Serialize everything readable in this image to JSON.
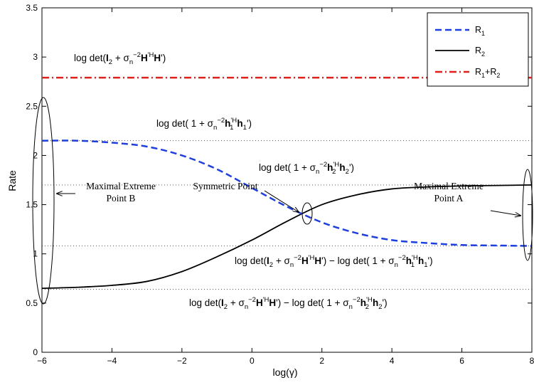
{
  "chart_data": {
    "type": "line",
    "xlabel": "log(γ)",
    "ylabel": "Rate",
    "xlim": [
      -6,
      8
    ],
    "ylim": [
      0,
      3.5
    ],
    "x_ticks": [
      "−6",
      "−4",
      "−2",
      "0",
      "2",
      "4",
      "6",
      "8"
    ],
    "y_ticks": [
      "0",
      "0.5",
      "1",
      "1.5",
      "2",
      "2.5",
      "3",
      "3.5"
    ],
    "grid": false,
    "legend": {
      "placement": "top-right",
      "entries": [
        "R1",
        "R2",
        "R1+R2"
      ]
    },
    "series": [
      {
        "name": "R1",
        "color": "#1f3fdd",
        "style": "dashed",
        "x": [
          -6,
          -5,
          -4,
          -3,
          -2,
          -1,
          0,
          1,
          2,
          3,
          4,
          5,
          6,
          7,
          8
        ],
        "y": [
          2.15,
          2.15,
          2.13,
          2.09,
          2.0,
          1.86,
          1.67,
          1.48,
          1.32,
          1.21,
          1.14,
          1.11,
          1.09,
          1.085,
          1.08
        ]
      },
      {
        "name": "R2",
        "color": "#000000",
        "style": "solid",
        "x": [
          -6,
          -5,
          -4,
          -3,
          -2,
          -1,
          0,
          1,
          2,
          3,
          4,
          5,
          6,
          7,
          8
        ],
        "y": [
          0.65,
          0.66,
          0.68,
          0.72,
          0.82,
          0.97,
          1.14,
          1.33,
          1.5,
          1.6,
          1.66,
          1.68,
          1.69,
          1.695,
          1.7
        ]
      },
      {
        "name": "R1+R2",
        "color": "#e0201c",
        "style": "dashdot",
        "x": [
          -6,
          8
        ],
        "y": [
          2.79,
          2.79
        ]
      }
    ],
    "reference_lines": [
      2.15,
      1.7,
      1.08,
      0.64
    ],
    "annotations": {
      "sum_bound": "log det(I2 + σn−2H'HH')",
      "r1_max": "log det( 1 + σn−2h1'Hh1')",
      "r2_max": "log det( 1 + σn−2h2'Hh2')",
      "r2_min": "log det(I2 + σn−2H'HH') − log det( 1 + σn−2h1'Hh1')",
      "r1_min": "log det(I2 + σn−2H'HH') − log det( 1 + σn−2h2'Hh2')",
      "point_b": [
        "Maximal Extreme",
        "Point B"
      ],
      "point_a": [
        "Maximal Extreme",
        "Point A"
      ],
      "symmetric": "Symmetric Point"
    }
  }
}
